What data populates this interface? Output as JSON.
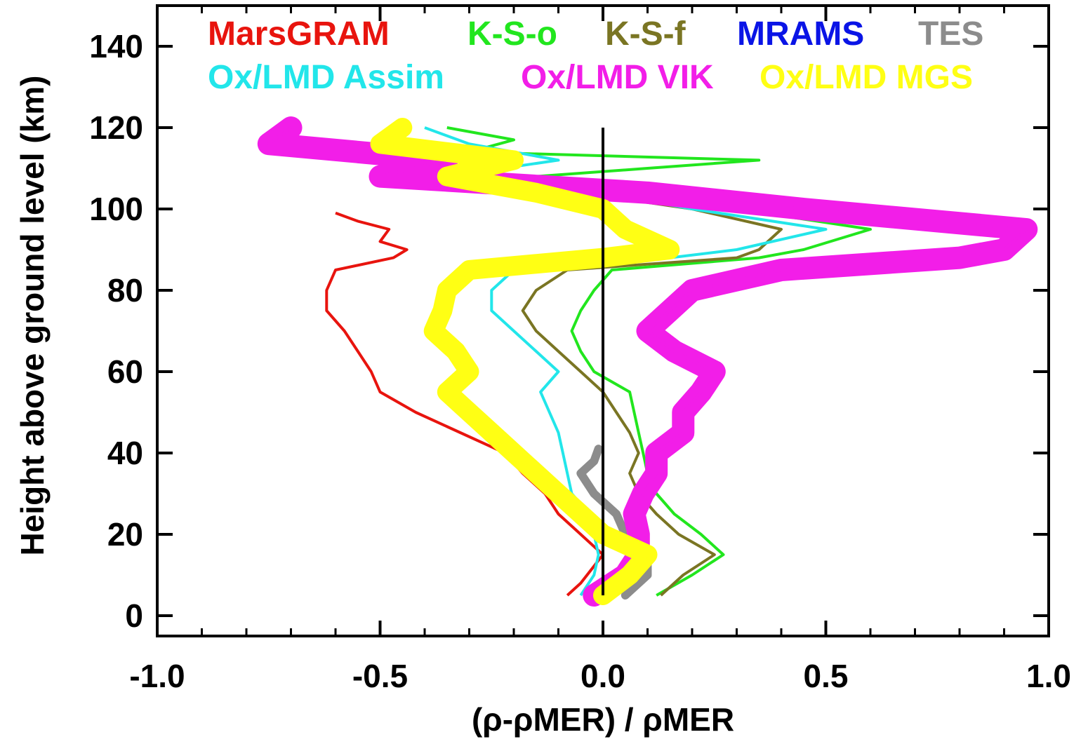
{
  "chart_data": {
    "type": "line",
    "xlabel": "(ρ-ρMER) / ρMER",
    "ylabel": "Height above ground level (km)",
    "xlim": [
      -1.0,
      1.0
    ],
    "ylim": [
      -5,
      150
    ],
    "x_ticks": [
      "-1.0",
      "-0.5",
      "0.0",
      "0.5",
      "1.0"
    ],
    "x_tick_values": [
      -1.0,
      -0.5,
      0.0,
      0.5,
      1.0
    ],
    "y_ticks": [
      "0",
      "20",
      "40",
      "60",
      "80",
      "100",
      "120",
      "140"
    ],
    "y_tick_values": [
      0,
      20,
      40,
      60,
      80,
      100,
      120,
      140
    ],
    "grid": false,
    "legend_position": "top",
    "reference_line": {
      "x": 0.0,
      "y_range": [
        5,
        120
      ],
      "color": "#000000"
    },
    "series": [
      {
        "name": "MarsGRAM",
        "color": "#e8140e",
        "spread": 0,
        "points": [
          [
            -0.08,
            5
          ],
          [
            -0.05,
            8
          ],
          [
            0.0,
            15
          ],
          [
            -0.05,
            20
          ],
          [
            -0.1,
            25
          ],
          [
            -0.13,
            30
          ],
          [
            -0.18,
            35
          ],
          [
            -0.22,
            40
          ],
          [
            -0.32,
            45
          ],
          [
            -0.42,
            50
          ],
          [
            -0.5,
            55
          ],
          [
            -0.52,
            60
          ],
          [
            -0.55,
            65
          ],
          [
            -0.58,
            70
          ],
          [
            -0.62,
            75
          ],
          [
            -0.62,
            80
          ],
          [
            -0.6,
            85
          ],
          [
            -0.47,
            88
          ],
          [
            -0.44,
            90
          ],
          [
            -0.5,
            92
          ],
          [
            -0.48,
            95
          ],
          [
            -0.55,
            97
          ],
          [
            -0.6,
            99
          ]
        ]
      },
      {
        "name": "K-S-o",
        "color": "#22e61e",
        "spread": 0,
        "points": [
          [
            0.12,
            5
          ],
          [
            0.2,
            10
          ],
          [
            0.27,
            15
          ],
          [
            0.22,
            20
          ],
          [
            0.16,
            25
          ],
          [
            0.12,
            30
          ],
          [
            0.1,
            35
          ],
          [
            0.09,
            40
          ],
          [
            0.08,
            45
          ],
          [
            0.06,
            55
          ],
          [
            -0.02,
            60
          ],
          [
            -0.05,
            65
          ],
          [
            -0.07,
            70
          ],
          [
            -0.05,
            75
          ],
          [
            -0.02,
            80
          ],
          [
            0.02,
            85
          ],
          [
            0.35,
            88
          ],
          [
            0.45,
            90
          ],
          [
            0.6,
            95
          ],
          [
            0.3,
            100
          ],
          [
            0.1,
            104
          ],
          [
            -0.15,
            108
          ],
          [
            0.1,
            110
          ],
          [
            0.35,
            112
          ],
          [
            -0.3,
            114
          ],
          [
            -0.2,
            117
          ],
          [
            -0.35,
            120
          ]
        ]
      },
      {
        "name": "K-S-f",
        "color": "#7a7523",
        "spread": 0,
        "points": [
          [
            0.13,
            5
          ],
          [
            0.18,
            10
          ],
          [
            0.25,
            15
          ],
          [
            0.17,
            20
          ],
          [
            0.12,
            25
          ],
          [
            0.08,
            30
          ],
          [
            0.06,
            35
          ],
          [
            0.08,
            40
          ],
          [
            0.06,
            45
          ],
          [
            0.0,
            55
          ],
          [
            -0.05,
            60
          ],
          [
            -0.1,
            65
          ],
          [
            -0.15,
            70
          ],
          [
            -0.18,
            75
          ],
          [
            -0.15,
            80
          ],
          [
            -0.08,
            85
          ],
          [
            0.3,
            88
          ],
          [
            0.35,
            90
          ],
          [
            0.4,
            95
          ],
          [
            0.2,
            100
          ],
          [
            -0.05,
            104
          ],
          [
            -0.3,
            108
          ],
          [
            -0.2,
            112
          ],
          [
            -0.5,
            116
          ],
          [
            -0.45,
            120
          ]
        ]
      },
      {
        "name": "MRAMS",
        "color": "#0a14e6",
        "spread": 0,
        "points": []
      },
      {
        "name": "TES",
        "color": "#8c8c8c",
        "spread": 6,
        "points": [
          [
            0.05,
            5
          ],
          [
            0.1,
            10
          ],
          [
            0.1,
            15
          ],
          [
            0.05,
            20
          ],
          [
            0.03,
            25
          ],
          [
            -0.02,
            30
          ],
          [
            -0.05,
            35
          ],
          [
            -0.02,
            38
          ],
          [
            -0.01,
            41
          ]
        ]
      },
      {
        "name": "Ox/LMD Assim",
        "color": "#22e6ea",
        "spread": 0,
        "points": [
          [
            -0.05,
            5
          ],
          [
            -0.02,
            10
          ],
          [
            -0.01,
            15
          ],
          [
            -0.02,
            20
          ],
          [
            -0.03,
            25
          ],
          [
            -0.07,
            30
          ],
          [
            -0.08,
            35
          ],
          [
            -0.09,
            40
          ],
          [
            -0.1,
            45
          ],
          [
            -0.12,
            50
          ],
          [
            -0.14,
            55
          ],
          [
            -0.1,
            60
          ],
          [
            -0.15,
            65
          ],
          [
            -0.2,
            70
          ],
          [
            -0.25,
            75
          ],
          [
            -0.25,
            80
          ],
          [
            -0.2,
            85
          ],
          [
            0.15,
            88
          ],
          [
            0.3,
            90
          ],
          [
            0.5,
            95
          ],
          [
            0.2,
            100
          ],
          [
            0.0,
            104
          ],
          [
            -0.35,
            108
          ],
          [
            -0.1,
            112
          ],
          [
            -0.3,
            116
          ],
          [
            -0.4,
            120
          ]
        ]
      },
      {
        "name": "Ox/LMD VIK",
        "color": "#f21ee8",
        "spread": 16,
        "points": [
          [
            -0.02,
            5
          ],
          [
            0.05,
            10
          ],
          [
            0.08,
            15
          ],
          [
            0.08,
            20
          ],
          [
            0.07,
            25
          ],
          [
            0.09,
            30
          ],
          [
            0.12,
            35
          ],
          [
            0.12,
            40
          ],
          [
            0.18,
            45
          ],
          [
            0.18,
            50
          ],
          [
            0.22,
            55
          ],
          [
            0.25,
            60
          ],
          [
            0.16,
            65
          ],
          [
            0.1,
            70
          ],
          [
            0.15,
            75
          ],
          [
            0.2,
            80
          ],
          [
            0.4,
            85
          ],
          [
            0.8,
            88
          ],
          [
            0.9,
            90
          ],
          [
            0.95,
            95
          ],
          [
            0.45,
            100
          ],
          [
            0.1,
            104
          ],
          [
            -0.5,
            108
          ],
          [
            -0.35,
            112
          ],
          [
            -0.75,
            116
          ],
          [
            -0.7,
            120
          ]
        ]
      },
      {
        "name": "Ox/LMD MGS",
        "color": "#ffff14",
        "spread": 14,
        "points": [
          [
            0.0,
            5
          ],
          [
            0.06,
            10
          ],
          [
            0.1,
            15
          ],
          [
            0.0,
            20
          ],
          [
            -0.05,
            25
          ],
          [
            -0.1,
            30
          ],
          [
            -0.15,
            35
          ],
          [
            -0.2,
            40
          ],
          [
            -0.25,
            45
          ],
          [
            -0.3,
            50
          ],
          [
            -0.35,
            55
          ],
          [
            -0.3,
            60
          ],
          [
            -0.33,
            65
          ],
          [
            -0.38,
            70
          ],
          [
            -0.36,
            75
          ],
          [
            -0.35,
            80
          ],
          [
            -0.3,
            85
          ],
          [
            0.0,
            88
          ],
          [
            0.15,
            90
          ],
          [
            0.05,
            95
          ],
          [
            0.0,
            100
          ],
          [
            -0.15,
            104
          ],
          [
            -0.35,
            108
          ],
          [
            -0.2,
            112
          ],
          [
            -0.5,
            116
          ],
          [
            -0.45,
            120
          ]
        ]
      }
    ]
  }
}
